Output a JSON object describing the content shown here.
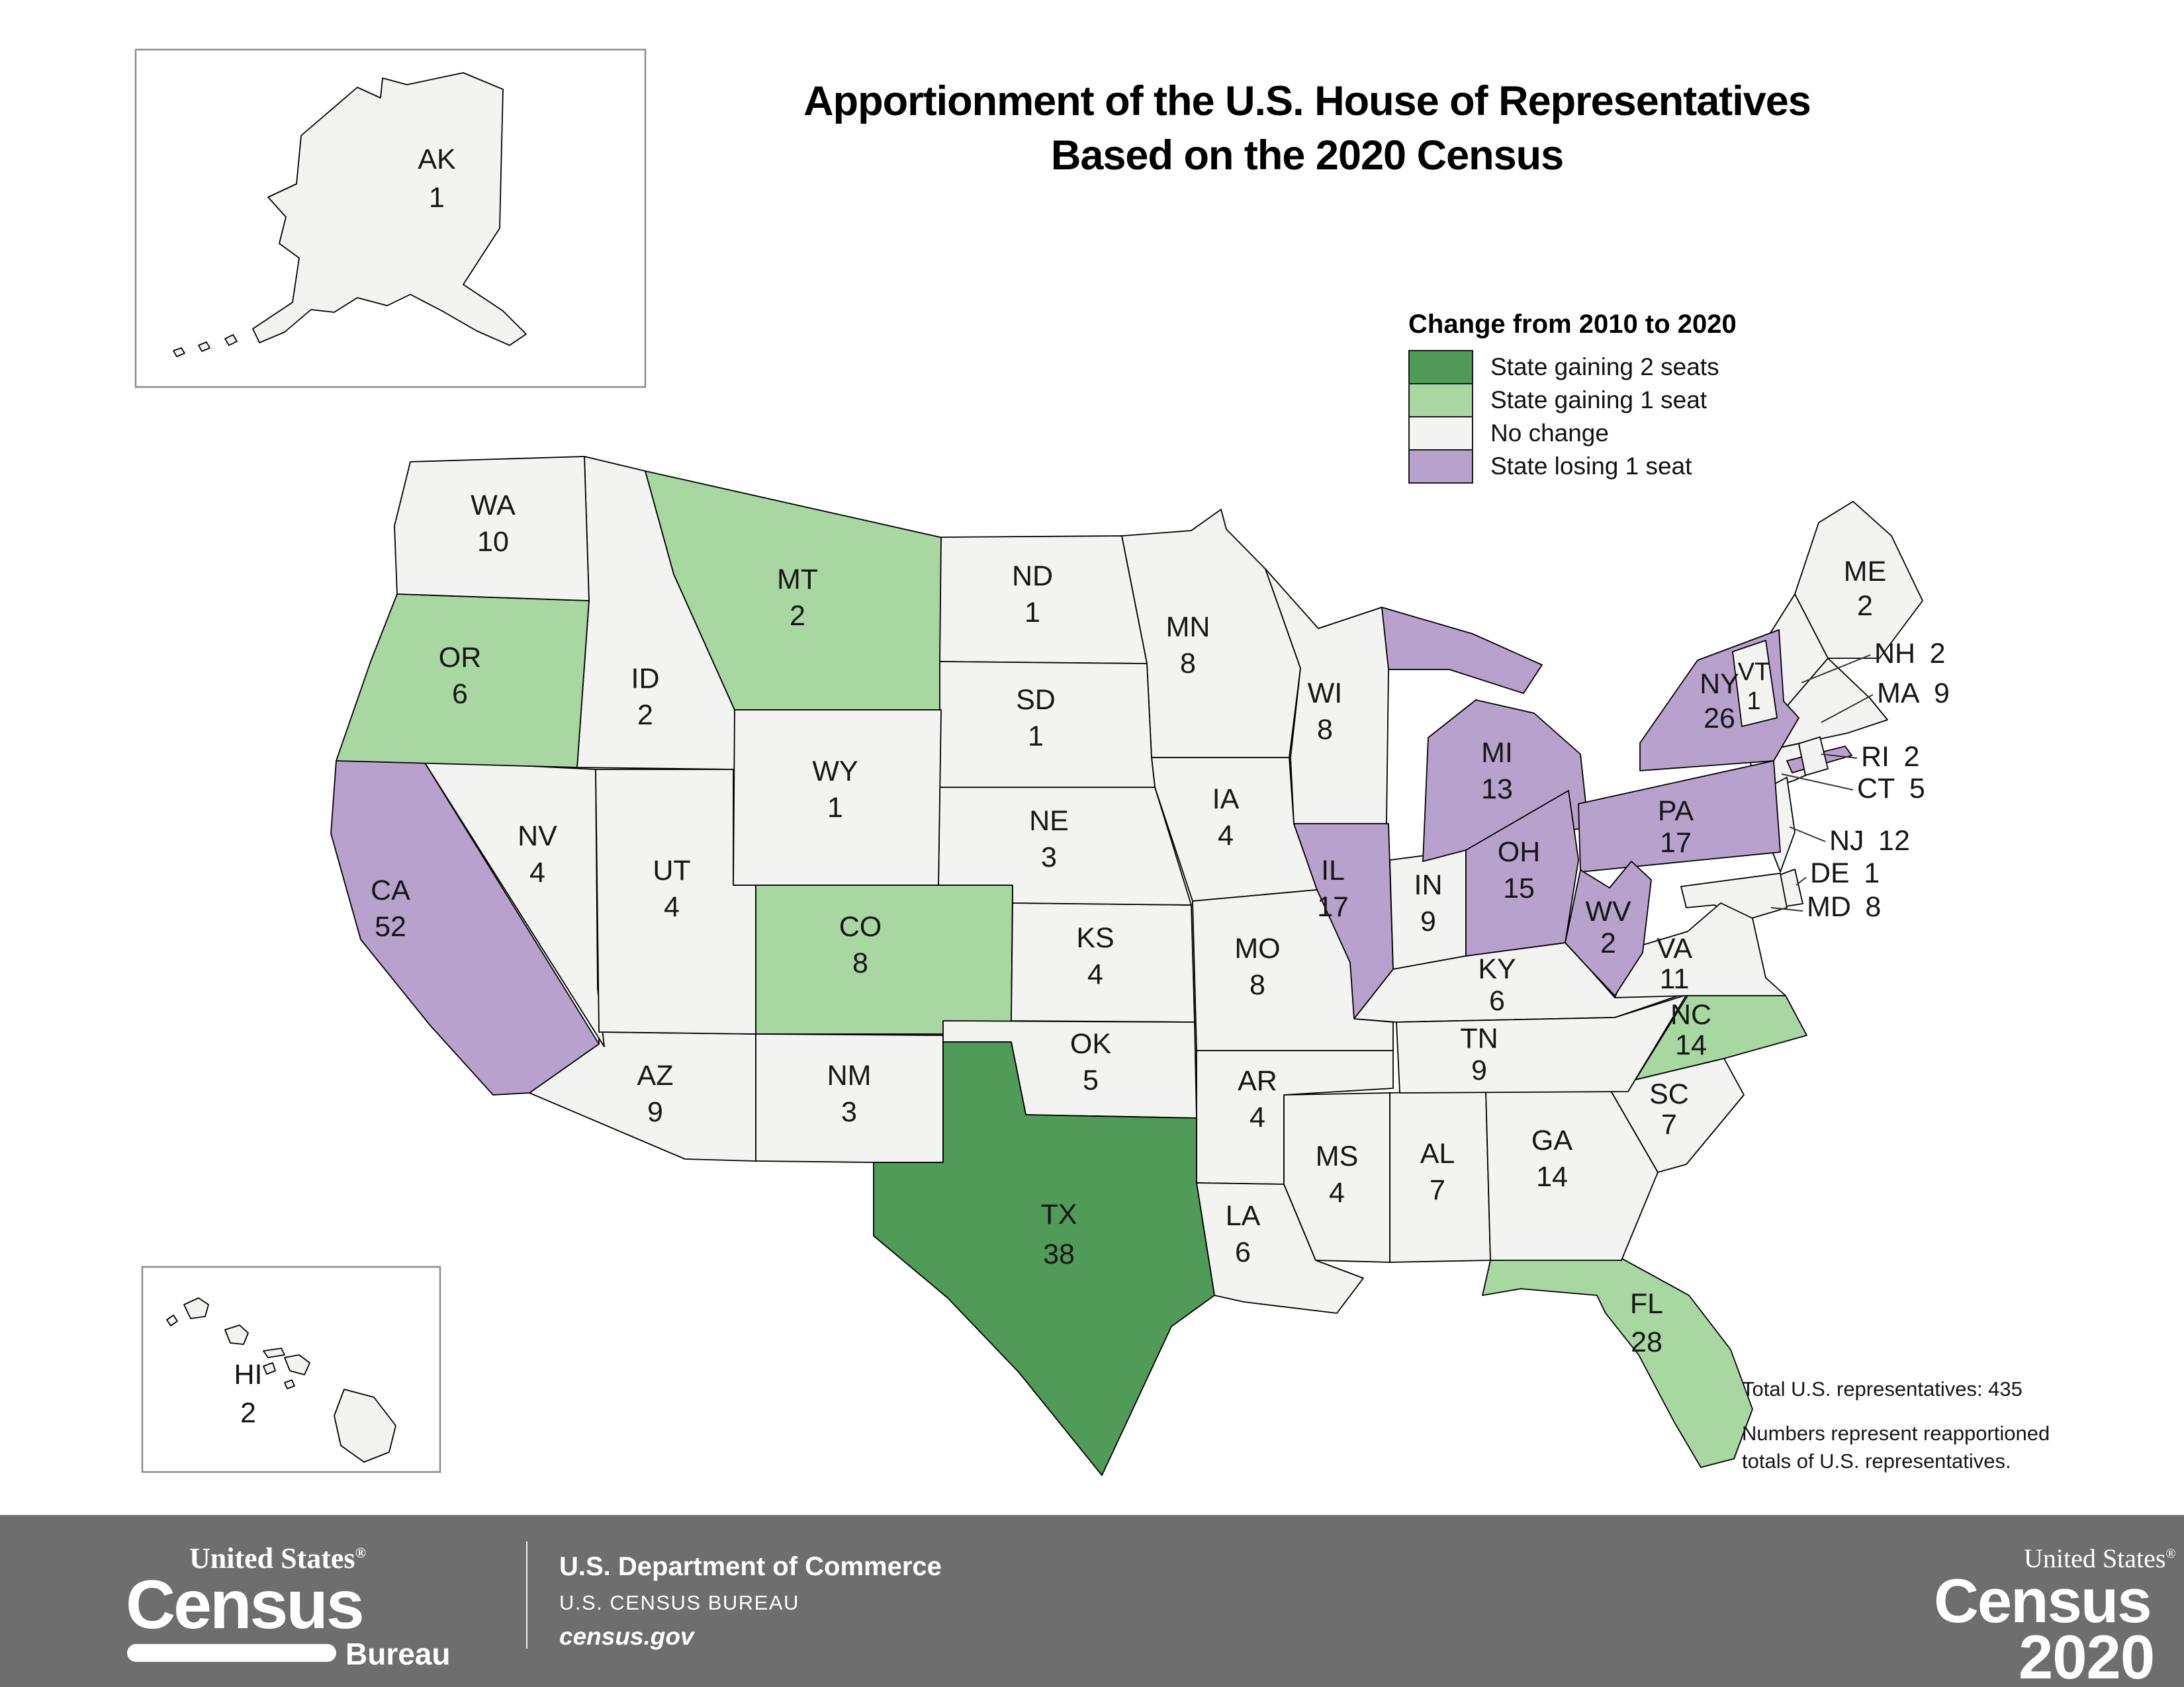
{
  "title": {
    "line1": "Apportionment of the U.S. House of Representatives",
    "line2": "Based on the 2020 Census"
  },
  "legend": {
    "title": "Change from 2010 to 2020",
    "items": [
      {
        "key": "gain2",
        "label": "State gaining 2 seats"
      },
      {
        "key": "gain1",
        "label": "State gaining 1 seat"
      },
      {
        "key": "none",
        "label": "No change"
      },
      {
        "key": "lose1",
        "label": "State losing 1 seat"
      }
    ]
  },
  "palette": {
    "gain2": "#4f9b57",
    "gain1": "#a8d7a2",
    "none": "#f3f3f2",
    "lose1": "#b9a1ce",
    "stroke": "#000000",
    "footer_bg": "#6e6e6e"
  },
  "states": [
    {
      "abbr": "AK",
      "seats": 1,
      "change": "none"
    },
    {
      "abbr": "AL",
      "seats": 7,
      "change": "none"
    },
    {
      "abbr": "AR",
      "seats": 4,
      "change": "none"
    },
    {
      "abbr": "AZ",
      "seats": 9,
      "change": "none"
    },
    {
      "abbr": "CA",
      "seats": 52,
      "change": "lose1"
    },
    {
      "abbr": "CO",
      "seats": 8,
      "change": "gain1"
    },
    {
      "abbr": "CT",
      "seats": 5,
      "change": "none"
    },
    {
      "abbr": "DE",
      "seats": 1,
      "change": "none"
    },
    {
      "abbr": "FL",
      "seats": 28,
      "change": "gain1"
    },
    {
      "abbr": "GA",
      "seats": 14,
      "change": "none"
    },
    {
      "abbr": "HI",
      "seats": 2,
      "change": "none"
    },
    {
      "abbr": "IA",
      "seats": 4,
      "change": "none"
    },
    {
      "abbr": "ID",
      "seats": 2,
      "change": "none"
    },
    {
      "abbr": "IL",
      "seats": 17,
      "change": "lose1"
    },
    {
      "abbr": "IN",
      "seats": 9,
      "change": "none"
    },
    {
      "abbr": "KS",
      "seats": 4,
      "change": "none"
    },
    {
      "abbr": "KY",
      "seats": 6,
      "change": "none"
    },
    {
      "abbr": "LA",
      "seats": 6,
      "change": "none"
    },
    {
      "abbr": "MA",
      "seats": 9,
      "change": "none"
    },
    {
      "abbr": "MD",
      "seats": 8,
      "change": "none"
    },
    {
      "abbr": "ME",
      "seats": 2,
      "change": "none"
    },
    {
      "abbr": "MI",
      "seats": 13,
      "change": "lose1"
    },
    {
      "abbr": "MN",
      "seats": 8,
      "change": "none"
    },
    {
      "abbr": "MO",
      "seats": 8,
      "change": "none"
    },
    {
      "abbr": "MS",
      "seats": 4,
      "change": "none"
    },
    {
      "abbr": "MT",
      "seats": 2,
      "change": "gain1"
    },
    {
      "abbr": "NC",
      "seats": 14,
      "change": "gain1"
    },
    {
      "abbr": "ND",
      "seats": 1,
      "change": "none"
    },
    {
      "abbr": "NE",
      "seats": 3,
      "change": "none"
    },
    {
      "abbr": "NH",
      "seats": 2,
      "change": "none"
    },
    {
      "abbr": "NJ",
      "seats": 12,
      "change": "none"
    },
    {
      "abbr": "NM",
      "seats": 3,
      "change": "none"
    },
    {
      "abbr": "NV",
      "seats": 4,
      "change": "none"
    },
    {
      "abbr": "NY",
      "seats": 26,
      "change": "lose1"
    },
    {
      "abbr": "OH",
      "seats": 15,
      "change": "lose1"
    },
    {
      "abbr": "OK",
      "seats": 5,
      "change": "none"
    },
    {
      "abbr": "OR",
      "seats": 6,
      "change": "gain1"
    },
    {
      "abbr": "PA",
      "seats": 17,
      "change": "lose1"
    },
    {
      "abbr": "RI",
      "seats": 2,
      "change": "none"
    },
    {
      "abbr": "SC",
      "seats": 7,
      "change": "none"
    },
    {
      "abbr": "SD",
      "seats": 1,
      "change": "none"
    },
    {
      "abbr": "TN",
      "seats": 9,
      "change": "none"
    },
    {
      "abbr": "TX",
      "seats": 38,
      "change": "gain2"
    },
    {
      "abbr": "UT",
      "seats": 4,
      "change": "none"
    },
    {
      "abbr": "VA",
      "seats": 11,
      "change": "none"
    },
    {
      "abbr": "VT",
      "seats": 1,
      "change": "none"
    },
    {
      "abbr": "WA",
      "seats": 10,
      "change": "none"
    },
    {
      "abbr": "WI",
      "seats": 8,
      "change": "none"
    },
    {
      "abbr": "WV",
      "seats": 2,
      "change": "lose1"
    },
    {
      "abbr": "WY",
      "seats": 1,
      "change": "none"
    }
  ],
  "notes": {
    "total": "Total U.S. representatives: 435",
    "note_line1": "Numbers represent reapportioned",
    "note_line2": "totals of U.S. representatives."
  },
  "footer": {
    "logo_top": "United States",
    "logo_reg": "®",
    "logo_main": "Census",
    "logo_sub": "Bureau",
    "dept": "U.S. Department of Commerce",
    "bureau": "U.S. CENSUS BUREAU",
    "site": "census.gov",
    "logo2020_top": "United States",
    "logo2020_reg": "®",
    "logo2020_main": "Census",
    "logo2020_year": "2020"
  }
}
